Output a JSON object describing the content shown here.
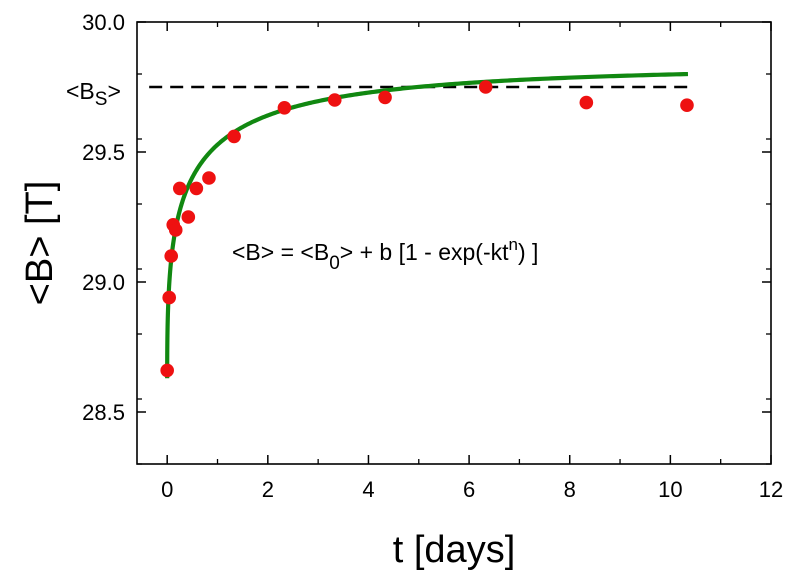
{
  "chart_data": {
    "type": "scatter",
    "xlabel": "t [days]",
    "ylabel": "<B> [T]",
    "xlim": [
      -0.6,
      12
    ],
    "ylim": [
      28.3,
      30.0
    ],
    "xticks": [
      0,
      2,
      4,
      6,
      8,
      10,
      12
    ],
    "yticks": [
      28.5,
      29.0,
      29.5,
      30.0
    ],
    "x_tick_labels": [
      "0",
      "2",
      "4",
      "6",
      "8",
      "10",
      "12"
    ],
    "y_tick_labels": [
      "28.5",
      "29.0",
      "29.5",
      "30.0"
    ],
    "grid": false,
    "colors": {
      "points": "#ee1111",
      "fit": "#118811",
      "saturation": "#000000"
    },
    "points": {
      "x": [
        0.0,
        0.04,
        0.08,
        0.12,
        0.17,
        0.25,
        0.42,
        0.58,
        0.83,
        1.33,
        2.33,
        3.33,
        4.33,
        6.33,
        8.33,
        10.33
      ],
      "y": [
        28.66,
        28.94,
        29.1,
        29.22,
        29.2,
        29.36,
        29.25,
        29.36,
        29.4,
        29.56,
        29.67,
        29.7,
        29.71,
        29.75,
        29.69,
        29.68
      ]
    },
    "fit": {
      "model": "B0 + b*(1 - exp(-k*t^n))",
      "B0": 28.63,
      "b": 1.2,
      "k": 1.38,
      "n": 0.42,
      "x_range": [
        0,
        10.35
      ]
    },
    "saturation": {
      "value": 29.75,
      "x_range": [
        0,
        10.35
      ]
    },
    "annotations": {
      "saturation": {
        "base": "<B",
        "sub": "S",
        "tail": ">"
      },
      "equation": {
        "part1": "<B> = <B",
        "sub": "0",
        "part2": "> + b [1 - exp(-kt",
        "sup": "n",
        "part3": ") ]"
      }
    }
  }
}
